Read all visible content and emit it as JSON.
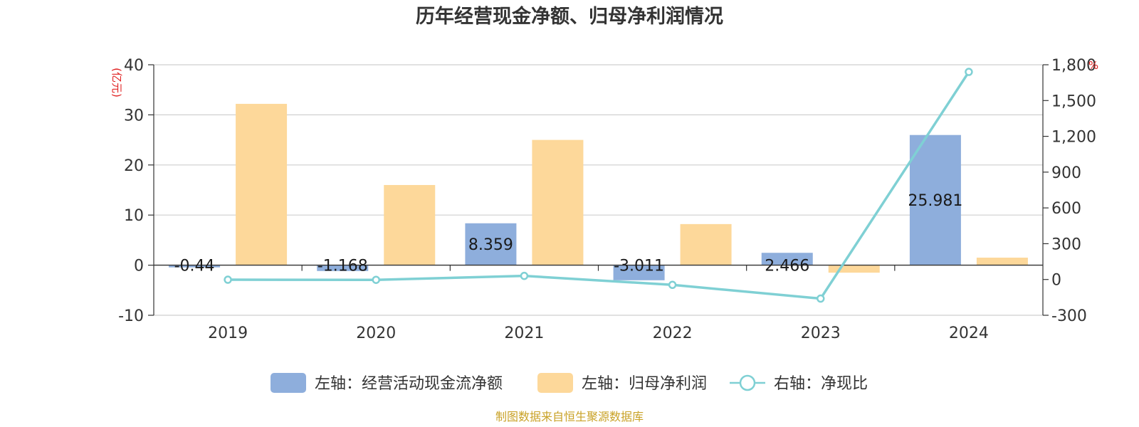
{
  "chart_data": {
    "type": "bar",
    "title": "历年经营现金净额、归母净利润情况",
    "categories": [
      "2019",
      "2020",
      "2021",
      "2022",
      "2023",
      "2024"
    ],
    "series": [
      {
        "name": "左轴：经营活动现金流净额",
        "type": "bar",
        "axis": "left",
        "color": "#8eaedc",
        "values": [
          -0.44,
          -1.168,
          8.359,
          -3.011,
          2.466,
          25.981
        ],
        "labels": [
          "-0.44",
          "-1.168",
          "8.359",
          "-3.011",
          "2.466",
          "25.981"
        ]
      },
      {
        "name": "左轴：归母净利润",
        "type": "bar",
        "axis": "left",
        "color": "#fdd89a",
        "values": [
          32.2,
          16.0,
          25.0,
          8.2,
          -1.5,
          1.5
        ]
      },
      {
        "name": "右轴：净现比",
        "type": "line",
        "axis": "right",
        "color": "#7fd0d4",
        "values": [
          -2,
          -3,
          30,
          -45,
          -160,
          1740
        ]
      }
    ],
    "left_axis": {
      "unit": "(亿元)",
      "min": -10,
      "max": 40,
      "ticks": [
        "-10",
        "0",
        "10",
        "20",
        "30",
        "40"
      ]
    },
    "right_axis": {
      "unit": "%",
      "min": -300,
      "max": 1800,
      "ticks": [
        "-300",
        "0",
        "300",
        "600",
        "900",
        "1,200",
        "1,500",
        "1,800"
      ]
    },
    "grid": true,
    "legend_position": "bottom"
  },
  "source": "制图数据来自恒生聚源数据库"
}
